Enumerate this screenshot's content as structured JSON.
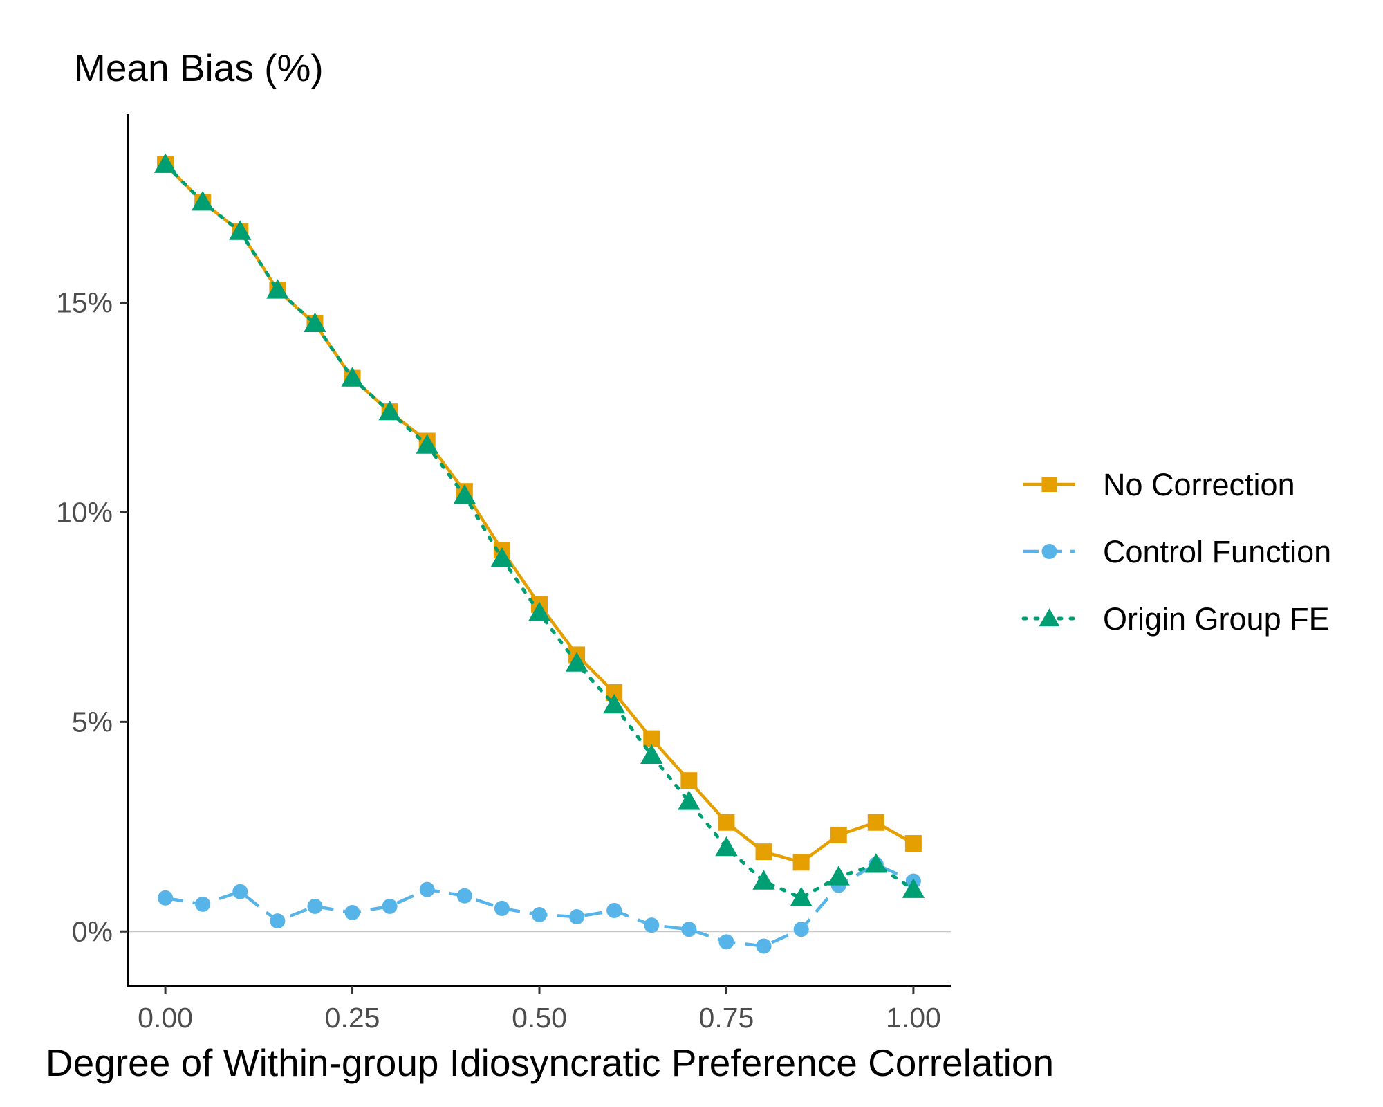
{
  "chart_data": {
    "type": "line",
    "title": "Mean Bias (%)",
    "xlabel": "Degree of Within-group Idiosyncratic Preference Correlation",
    "ylabel": "",
    "xlim": [
      -0.05,
      1.05
    ],
    "ylim": [
      -1.3,
      19.5
    ],
    "x": [
      0.0,
      0.05,
      0.1,
      0.15,
      0.2,
      0.25,
      0.3,
      0.35,
      0.4,
      0.45,
      0.5,
      0.55,
      0.6,
      0.65,
      0.7,
      0.75,
      0.8,
      0.85,
      0.9,
      0.95,
      1.0
    ],
    "x_ticks": [
      {
        "value": 0.0,
        "label": "0.00"
      },
      {
        "value": 0.25,
        "label": "0.25"
      },
      {
        "value": 0.5,
        "label": "0.50"
      },
      {
        "value": 0.75,
        "label": "0.75"
      },
      {
        "value": 1.0,
        "label": "1.00"
      }
    ],
    "y_ticks": [
      {
        "value": 0,
        "label": "0%"
      },
      {
        "value": 5,
        "label": "5%"
      },
      {
        "value": 10,
        "label": "10%"
      },
      {
        "value": 15,
        "label": "15%"
      }
    ],
    "reference_line": 0,
    "grid": false,
    "legend_position": "right",
    "series": [
      {
        "name": "No Correction",
        "color": "#E69F00",
        "line_style": "solid",
        "marker": "square",
        "values": [
          18.3,
          17.4,
          16.7,
          15.3,
          14.5,
          13.2,
          12.4,
          11.7,
          10.5,
          9.1,
          7.8,
          6.6,
          5.7,
          4.6,
          3.6,
          2.6,
          1.9,
          1.65,
          2.3,
          2.6,
          2.1
        ]
      },
      {
        "name": "Control Function",
        "color": "#56B4E9",
        "line_style": "dashed",
        "marker": "circle",
        "values": [
          0.8,
          0.65,
          0.95,
          0.25,
          0.6,
          0.45,
          0.6,
          1.0,
          0.85,
          0.55,
          0.4,
          0.35,
          0.5,
          0.15,
          0.05,
          -0.25,
          -0.35,
          0.05,
          1.1,
          1.6,
          1.2
        ]
      },
      {
        "name": "Origin Group FE",
        "color": "#009E73",
        "line_style": "dotted",
        "marker": "triangle",
        "values": [
          18.3,
          17.4,
          16.7,
          15.3,
          14.5,
          13.2,
          12.4,
          11.6,
          10.4,
          8.9,
          7.6,
          6.4,
          5.4,
          4.2,
          3.1,
          2.0,
          1.2,
          0.8,
          1.3,
          1.6,
          1.0
        ]
      }
    ]
  }
}
